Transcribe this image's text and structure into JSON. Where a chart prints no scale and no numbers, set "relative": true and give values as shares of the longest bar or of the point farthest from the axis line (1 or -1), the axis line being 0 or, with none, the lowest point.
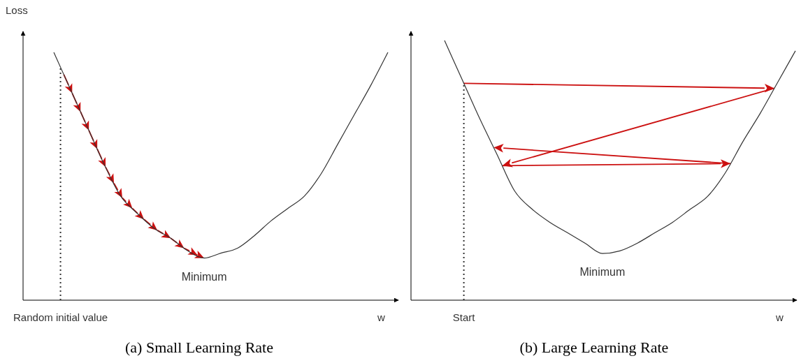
{
  "chart_data": [
    {
      "type": "line",
      "title": "(a) Small Learning Rate",
      "xlabel": "w",
      "ylabel": "Loss",
      "relative": true,
      "annotations": [
        "Minimum",
        "Random initial value"
      ],
      "categories": [
        null,
        null,
        null,
        null,
        null,
        null,
        null,
        null,
        null,
        null,
        null,
        null,
        null,
        null,
        null,
        null,
        null,
        null,
        null,
        null,
        null
      ],
      "series": [
        {
          "color": "#333333",
          "values": [
            1,
            0.85,
            0.7,
            0.55,
            0.42,
            0.35,
            0.29,
            0.25,
            0.2,
            0.17,
            0.19,
            0.21,
            0.26,
            0.32,
            0.37,
            0.42,
            0.51,
            0.63,
            0.75,
            0.87,
            1
          ]
        }
      ]
    },
    {
      "type": "line",
      "title": "(b) Large Learning Rate",
      "xlabel": "w",
      "relative": true,
      "annotations": [
        "Minimum",
        "Start"
      ],
      "categories": [
        null,
        null,
        null,
        null,
        null,
        null,
        null,
        null,
        null,
        null,
        null,
        null,
        null,
        null,
        null,
        null,
        null,
        null,
        null,
        null,
        null
      ],
      "series": [
        {
          "color": "#333333",
          "values": [
            1,
            0.85,
            0.7,
            0.56,
            0.42,
            0.35,
            0.3,
            0.26,
            0.22,
            0.18,
            0.19,
            0.22,
            0.26,
            0.3,
            0.35,
            0.4,
            0.49,
            0.61,
            0.72,
            0.84,
            0.96
          ]
        }
      ]
    }
  ]
}
